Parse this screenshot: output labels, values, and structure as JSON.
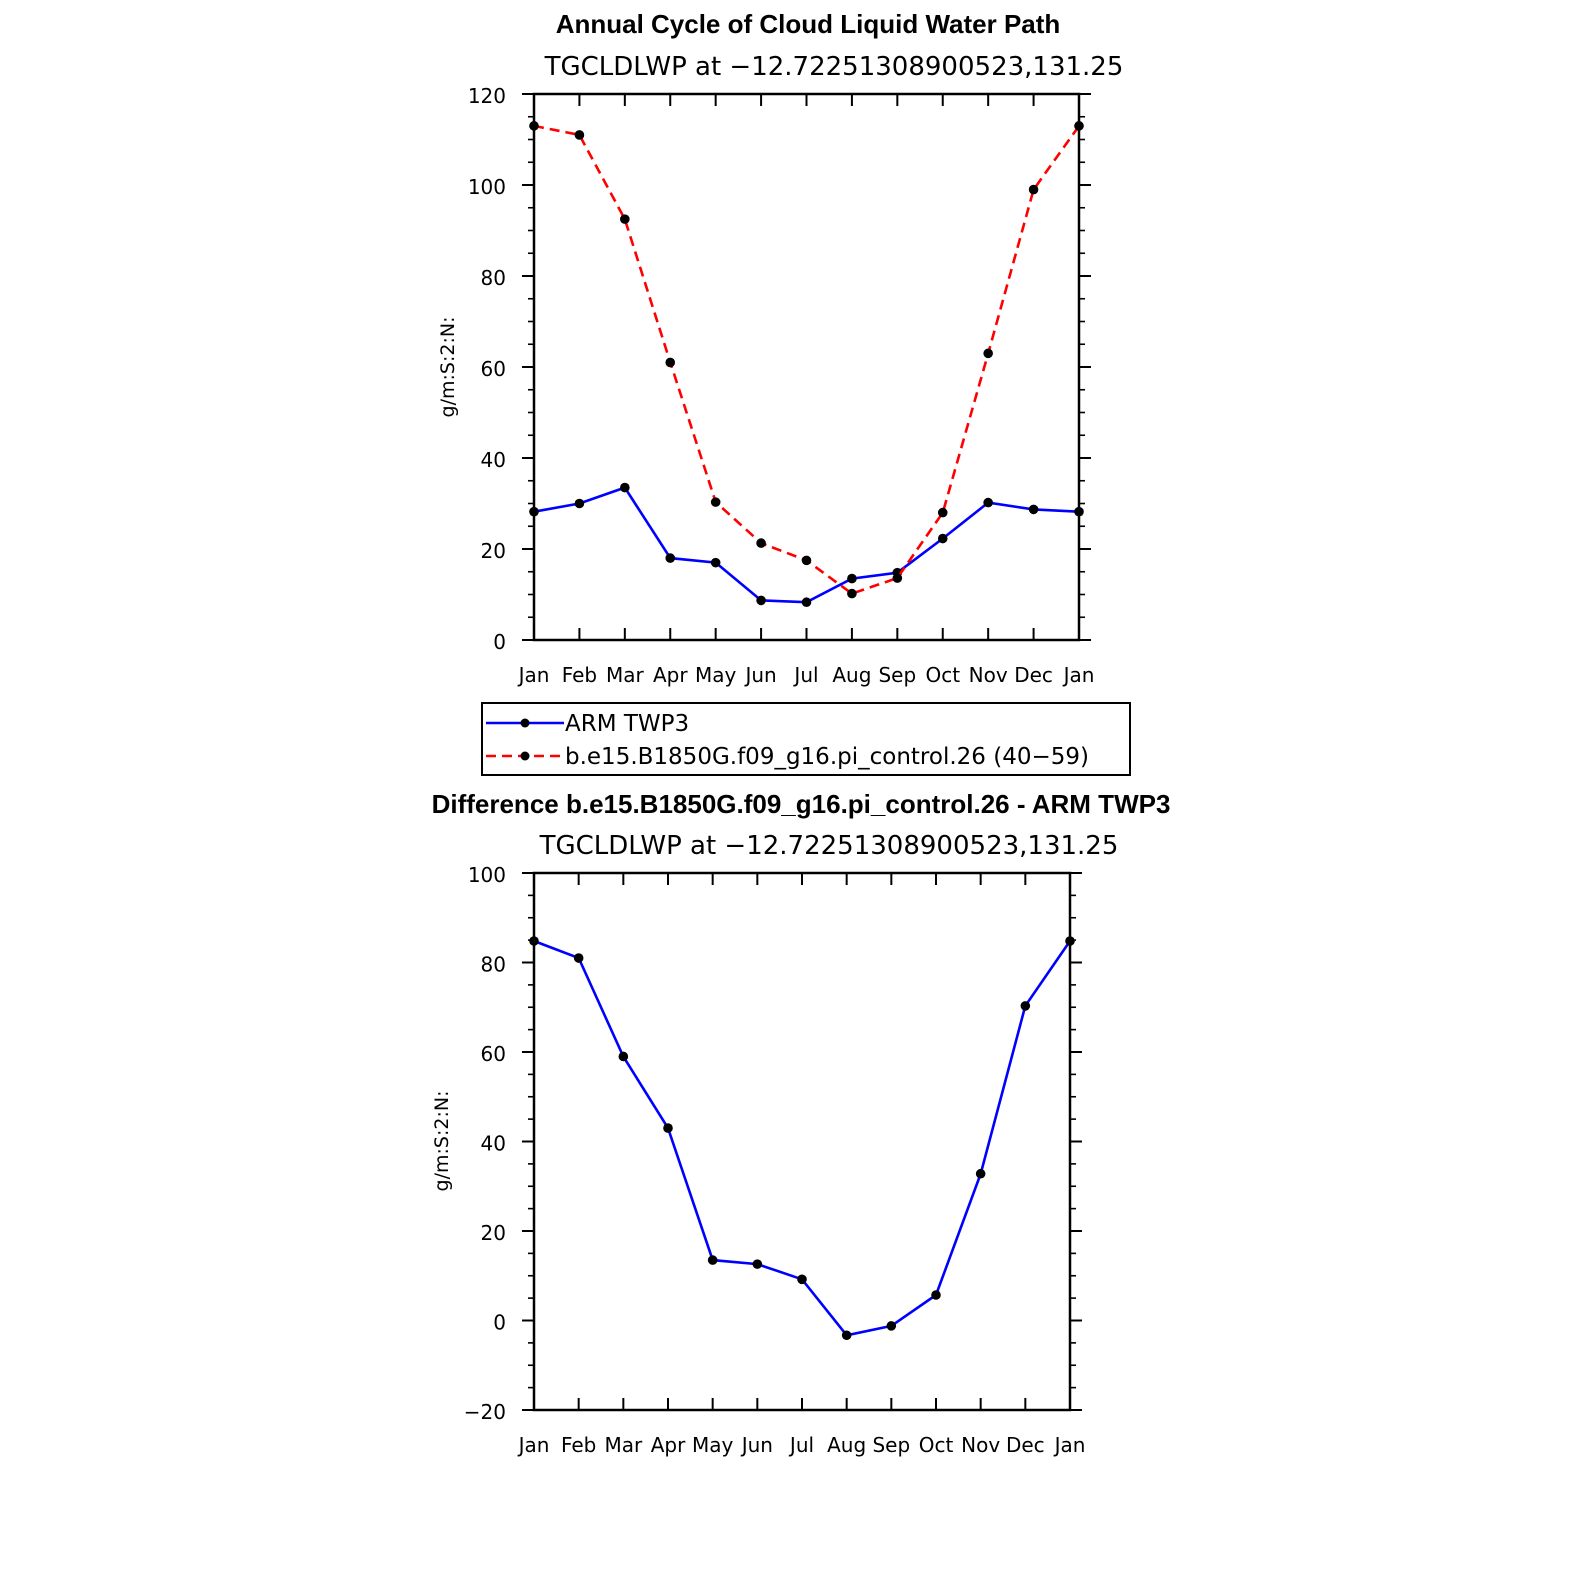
{
  "chart_data": [
    {
      "type": "line",
      "title": "Annual Cycle of Cloud Liquid Water Path",
      "subtitle": "TGCLDLWP  at  −12.72251308900523,131.25",
      "ylabel": "g/m:S:2:N:",
      "xlabel": "",
      "categories": [
        "Jan",
        "Feb",
        "Mar",
        "Apr",
        "May",
        "Jun",
        "Jul",
        "Aug",
        "Sep",
        "Oct",
        "Nov",
        "Dec",
        "Jan"
      ],
      "ylim": [
        0,
        120
      ],
      "yticks": [
        "0",
        "20",
        "40",
        "60",
        "80",
        "100",
        "120"
      ],
      "grid": false,
      "legend_position": "below",
      "series": [
        {
          "name": "ARM  TWP3",
          "color": "#0000ff",
          "dash": "solid",
          "values": [
            28.2,
            30.0,
            33.5,
            18.0,
            17.0,
            8.7,
            8.3,
            13.5,
            14.8,
            22.3,
            30.2,
            28.7,
            28.2
          ]
        },
        {
          "name": "b.e15.B1850G.f09_g16.pi_control.26 (40−59)",
          "color": "#ff0000",
          "dash": "dashed",
          "values": [
            113.0,
            111.0,
            92.5,
            61.0,
            30.3,
            21.3,
            17.5,
            10.2,
            13.6,
            28.0,
            63.0,
            99.0,
            113.0
          ]
        }
      ]
    },
    {
      "type": "line",
      "title": "Difference b.e15.B1850G.f09_g16.pi_control.26 - ARM TWP3",
      "subtitle": "TGCLDLWP  at  −12.72251308900523,131.25",
      "ylabel": "g/m:S:2:N:",
      "xlabel": "",
      "categories": [
        "Jan",
        "Feb",
        "Mar",
        "Apr",
        "May",
        "Jun",
        "Jul",
        "Aug",
        "Sep",
        "Oct",
        "Nov",
        "Dec",
        "Jan"
      ],
      "ylim": [
        -20,
        100
      ],
      "yticks": [
        "−20",
        "0",
        "20",
        "40",
        "60",
        "80",
        "100"
      ],
      "grid": false,
      "series": [
        {
          "color": "#0000ff",
          "dash": "solid",
          "values": [
            84.8,
            81.0,
            59.0,
            43.0,
            13.5,
            12.6,
            9.2,
            -3.3,
            -1.2,
            5.7,
            32.8,
            70.3,
            84.8
          ]
        }
      ]
    }
  ]
}
